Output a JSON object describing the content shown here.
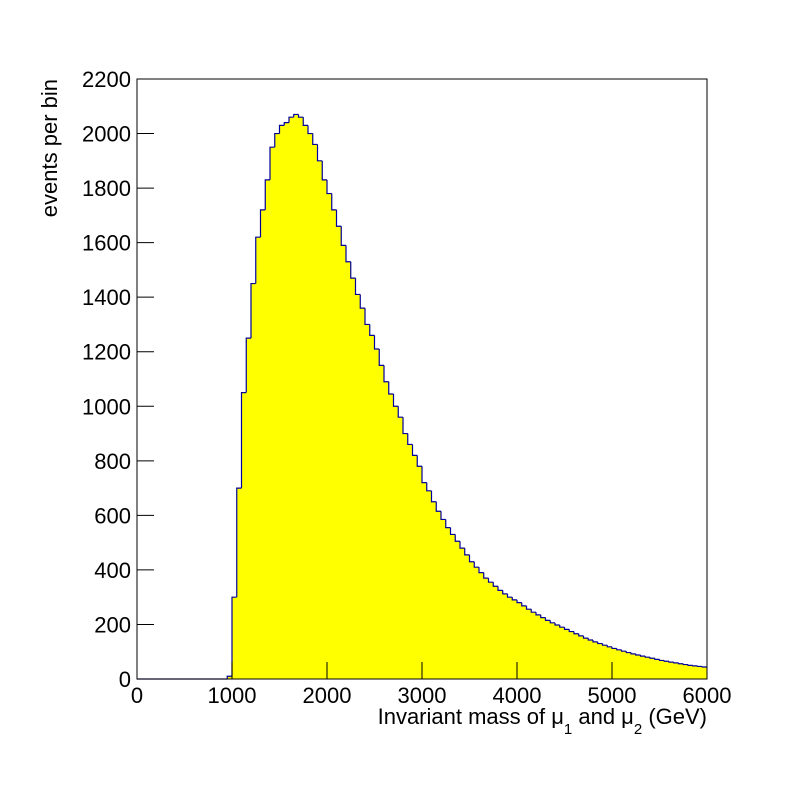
{
  "chart_data": {
    "type": "histogram",
    "x_label": [
      "Invariant mass of μ",
      "1",
      " and μ",
      "2",
      " (GeV)"
    ],
    "y_label": "events per bin",
    "bins": [
      0,
      50,
      100,
      150,
      200,
      250,
      300,
      350,
      400,
      450,
      500,
      550,
      600,
      650,
      700,
      750,
      800,
      850,
      900,
      950,
      1000,
      1050,
      1100,
      1150,
      1200,
      1250,
      1300,
      1350,
      1400,
      1450,
      1500,
      1550,
      1600,
      1650,
      1700,
      1750,
      1800,
      1850,
      1900,
      1950,
      2000,
      2050,
      2100,
      2150,
      2200,
      2250,
      2300,
      2350,
      2400,
      2450,
      2500,
      2550,
      2600,
      2650,
      2700,
      2750,
      2800,
      2850,
      2900,
      2950,
      3000,
      3050,
      3100,
      3150,
      3200,
      3250,
      3300,
      3350,
      3400,
      3450,
      3500,
      3550,
      3600,
      3650,
      3700,
      3750,
      3800,
      3850,
      3900,
      3950,
      4000,
      4050,
      4100,
      4150,
      4200,
      4250,
      4300,
      4350,
      4400,
      4450,
      4500,
      4550,
      4600,
      4650,
      4700,
      4750,
      4800,
      4850,
      4900,
      4950,
      5000,
      5050,
      5100,
      5150,
      5200,
      5250,
      5300,
      5350,
      5400,
      5450,
      5500,
      5550,
      5600,
      5650,
      5700,
      5750,
      5800,
      5850,
      5900,
      5950,
      6000
    ],
    "values": [
      0,
      0,
      0,
      0,
      0,
      0,
      0,
      0,
      0,
      0,
      0,
      0,
      0,
      0,
      0,
      0,
      0,
      0,
      0,
      10,
      300,
      700,
      1050,
      1250,
      1450,
      1620,
      1720,
      1830,
      1950,
      2000,
      2030,
      2040,
      2060,
      2070,
      2060,
      2030,
      2000,
      1960,
      1900,
      1830,
      1780,
      1720,
      1660,
      1590,
      1530,
      1470,
      1410,
      1360,
      1300,
      1260,
      1210,
      1150,
      1090,
      1045,
      1000,
      960,
      900,
      860,
      820,
      780,
      720,
      690,
      650,
      615,
      585,
      555,
      530,
      505,
      480,
      455,
      430,
      410,
      390,
      370,
      355,
      340,
      325,
      312,
      300,
      290,
      280,
      268,
      256,
      245,
      235,
      225,
      215,
      206,
      198,
      190,
      182,
      174,
      166,
      158,
      150,
      143,
      136,
      130,
      124,
      118,
      112,
      107,
      102,
      97,
      92,
      88,
      84,
      80,
      76,
      72,
      68,
      65,
      62,
      59,
      56,
      53,
      50,
      48,
      46,
      44
    ],
    "fill_color": "#ffff00",
    "line_color": "#000099",
    "xlim": [
      0,
      6000
    ],
    "xticks": [
      0,
      1000,
      2000,
      3000,
      4000,
      5000,
      6000
    ],
    "ylim": [
      0,
      2200
    ],
    "yticks": [
      0,
      200,
      400,
      600,
      800,
      1000,
      1200,
      1400,
      1600,
      1800,
      2000,
      2200
    ]
  }
}
